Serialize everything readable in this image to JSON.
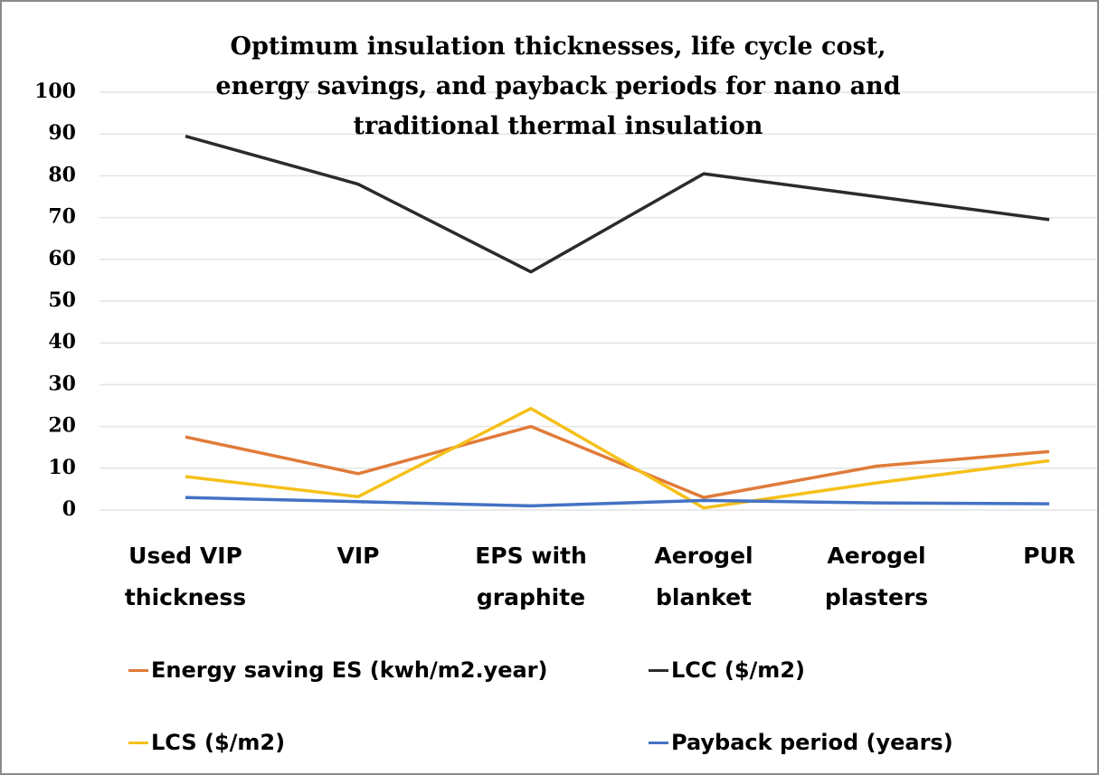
{
  "chart_data": {
    "type": "line",
    "title": "Optimum insulation thicknesses, life cycle cost, energy savings, and payback periods for nano and traditional thermal insulation",
    "categories": [
      "Used VIP thickness",
      "VIP",
      "EPS with graphite",
      "Aerogel blanket",
      "Aerogel plasters",
      "PUR"
    ],
    "series": [
      {
        "name": "Energy saving ES (kwh/m2.year)",
        "color": "#e07b39",
        "values": [
          17.5,
          8.7,
          20,
          3,
          10.5,
          14
        ]
      },
      {
        "name": "LCC ($/m2)",
        "color": "#2b2b2b",
        "values": [
          89.5,
          78,
          57,
          80.5,
          75,
          69.5
        ]
      },
      {
        "name": "LCS ($/m2)",
        "color": "#f5c01a",
        "values": [
          8,
          3.2,
          24.3,
          0.5,
          6.5,
          11.8
        ]
      },
      {
        "name": "Payback period (years)",
        "color": "#4472c4",
        "values": [
          3,
          2,
          1,
          2.3,
          1.7,
          1.5
        ]
      }
    ],
    "ylim": [
      0,
      100
    ],
    "yticks": [
      0,
      10,
      20,
      30,
      40,
      50,
      60,
      70,
      80,
      90,
      100
    ],
    "grid": true
  }
}
